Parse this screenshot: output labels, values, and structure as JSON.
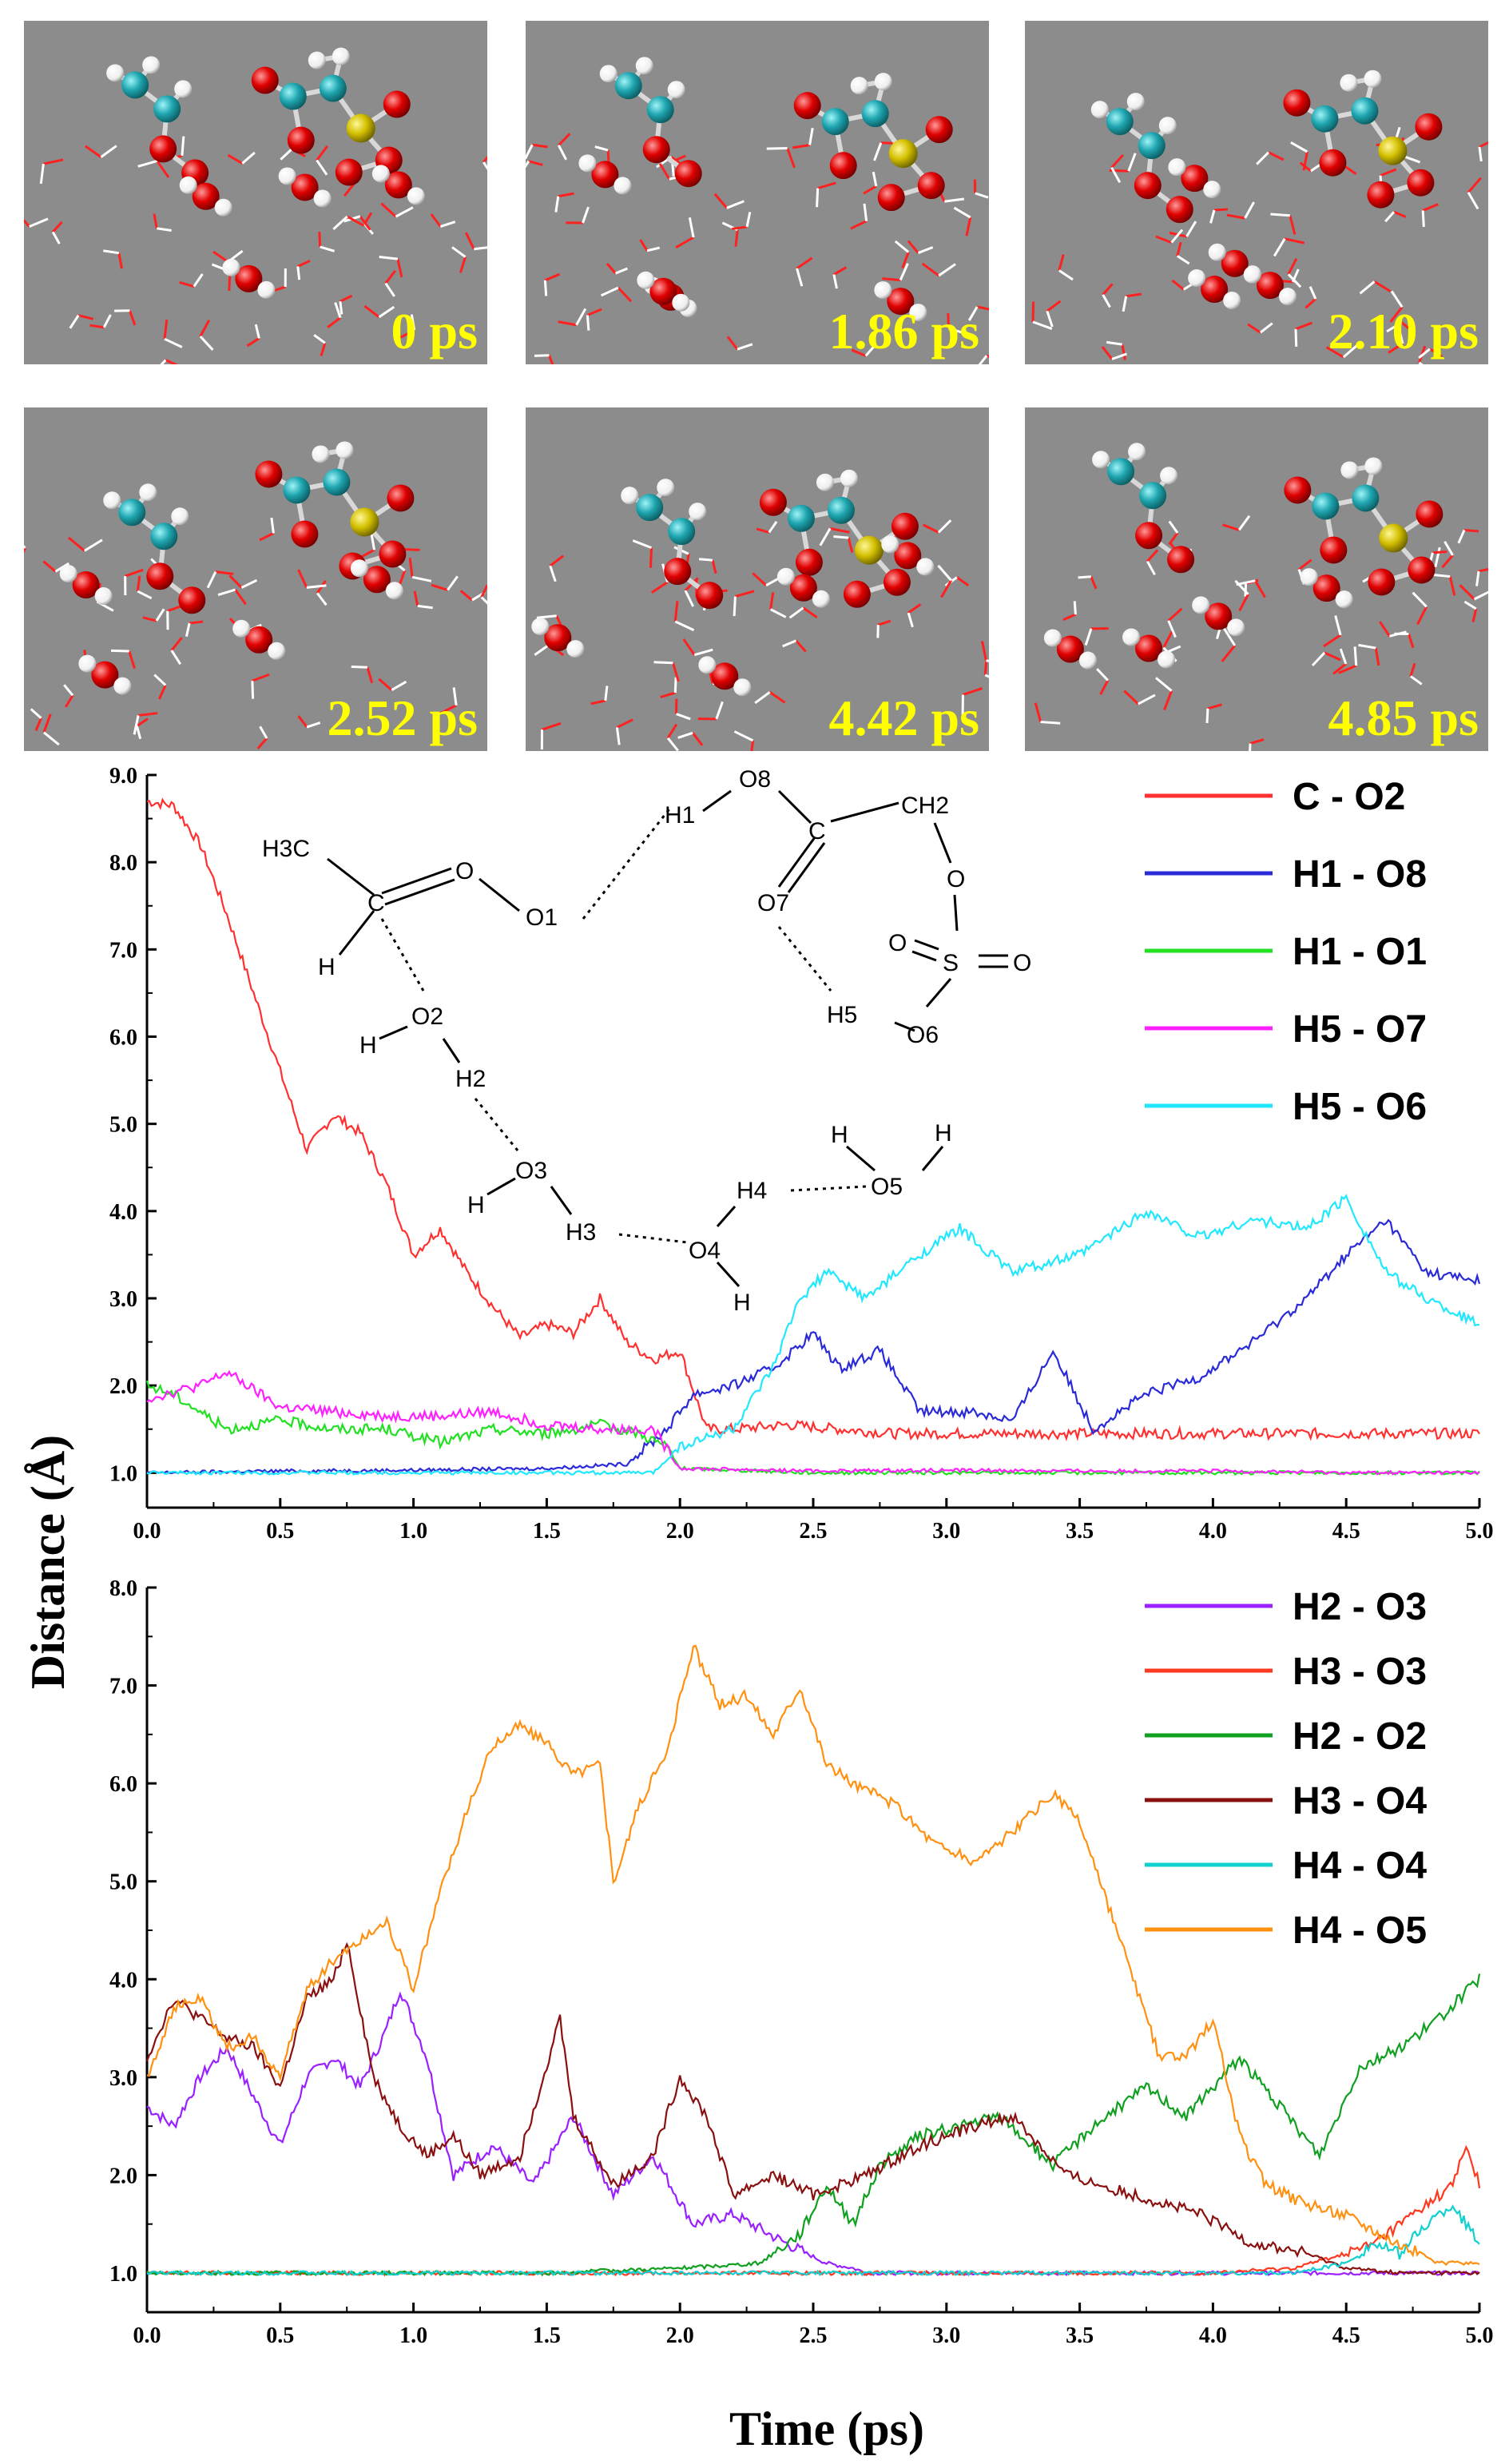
{
  "figure": {
    "snapshots": [
      {
        "time_label": "0 ps"
      },
      {
        "time_label": "1.86 ps"
      },
      {
        "time_label": "2.10 ps"
      },
      {
        "time_label": "2.52 ps"
      },
      {
        "time_label": "4.42 ps"
      },
      {
        "time_label": "4.85 ps"
      }
    ],
    "colors": {
      "carbon": "#1fa6b0",
      "oxygen": "#e00000",
      "hydrogen": "#ffffff",
      "sulfur": "#d4c000",
      "background": "#8c8c8c"
    }
  },
  "shared_axes": {
    "xlabel": "Time (ps)",
    "ylabel": "Distance (Å)"
  },
  "scheme_labels": {
    "H3C": "H3C",
    "C": "C",
    "H_left": "H",
    "O": "O",
    "O1": "O1",
    "H1": "H1",
    "O8": "O8",
    "C_right": "C",
    "CH2": "CH2",
    "O7": "O7",
    "O_ester": "O",
    "S": "S",
    "O_s1": "O",
    "O_s2": "O",
    "H5": "H5",
    "O6": "O6",
    "O2": "O2",
    "H_o2": "H",
    "H2": "H2",
    "O3": "O3",
    "H_o3": "H",
    "H3": "H3",
    "O4": "O4",
    "H_o4": "H",
    "H4": "H4",
    "O5": "O5",
    "H_o5a": "H",
    "H_o5b": "H"
  },
  "chart_data": [
    {
      "type": "line",
      "title": "",
      "xlabel": "Time (ps)",
      "ylabel": "Distance (Å)",
      "xlim": [
        0.0,
        5.0
      ],
      "ylim": [
        0.6,
        9.0
      ],
      "xticks": [
        "0.0",
        "0.5",
        "1.0",
        "1.5",
        "2.0",
        "2.5",
        "3.0",
        "3.5",
        "4.0",
        "4.5",
        "5.0"
      ],
      "yticks": [
        "1.0",
        "2.0",
        "3.0",
        "4.0",
        "5.0",
        "6.0",
        "7.0",
        "8.0",
        "9.0"
      ],
      "legend": "top-right",
      "series": [
        {
          "name": "C - O2",
          "color": "#ff3030",
          "x": [
            0.0,
            0.1,
            0.2,
            0.3,
            0.4,
            0.5,
            0.6,
            0.7,
            0.8,
            0.9,
            1.0,
            1.1,
            1.2,
            1.3,
            1.4,
            1.5,
            1.6,
            1.7,
            1.8,
            1.9,
            2.0,
            2.1,
            2.2,
            2.4,
            2.6,
            2.8,
            3.0,
            3.5,
            4.0,
            4.5,
            5.0
          ],
          "y": [
            8.7,
            8.65,
            8.2,
            7.4,
            6.5,
            5.6,
            4.7,
            5.1,
            4.9,
            4.3,
            3.5,
            3.8,
            3.3,
            2.9,
            2.55,
            2.7,
            2.6,
            3.0,
            2.5,
            2.3,
            2.4,
            1.5,
            1.5,
            1.55,
            1.5,
            1.45,
            1.45,
            1.45,
            1.45,
            1.45,
            1.45
          ]
        },
        {
          "name": "H1 - O8",
          "color": "#2a2ad8",
          "x": [
            0.0,
            0.5,
            1.0,
            1.5,
            1.8,
            1.95,
            2.05,
            2.2,
            2.35,
            2.5,
            2.6,
            2.75,
            2.9,
            3.1,
            3.25,
            3.4,
            3.55,
            3.75,
            3.95,
            4.15,
            4.35,
            4.5,
            4.65,
            4.8,
            5.0
          ],
          "y": [
            1.0,
            1.02,
            1.03,
            1.05,
            1.1,
            1.5,
            1.9,
            2.0,
            2.2,
            2.6,
            2.2,
            2.4,
            1.7,
            1.7,
            1.6,
            2.4,
            1.5,
            1.9,
            2.1,
            2.5,
            3.0,
            3.5,
            3.9,
            3.3,
            3.2
          ]
        },
        {
          "name": "H1 - O1",
          "color": "#22e022",
          "x": [
            0.0,
            0.1,
            0.2,
            0.3,
            0.5,
            0.7,
            0.9,
            1.1,
            1.3,
            1.5,
            1.7,
            1.85,
            1.95,
            2.0,
            2.5,
            3.0,
            3.5,
            4.0,
            4.5,
            5.0
          ],
          "y": [
            2.0,
            1.9,
            1.7,
            1.5,
            1.6,
            1.5,
            1.5,
            1.35,
            1.5,
            1.45,
            1.55,
            1.45,
            1.3,
            1.05,
            1.0,
            1.0,
            1.0,
            1.0,
            1.0,
            1.0
          ]
        },
        {
          "name": "H5 - O7",
          "color": "#ff20ff",
          "x": [
            0.0,
            0.2,
            0.3,
            0.5,
            0.7,
            0.9,
            1.1,
            1.3,
            1.5,
            1.7,
            1.9,
            2.0,
            2.5,
            3.0,
            3.5,
            4.0,
            4.5,
            5.0
          ],
          "y": [
            1.85,
            2.0,
            2.15,
            1.75,
            1.7,
            1.65,
            1.65,
            1.7,
            1.55,
            1.5,
            1.5,
            1.05,
            1.02,
            1.03,
            1.02,
            1.02,
            1.0,
            1.0
          ]
        },
        {
          "name": "H5 - O6",
          "color": "#20e8ff",
          "x": [
            0.0,
            0.5,
            1.0,
            1.5,
            1.9,
            2.0,
            2.1,
            2.2,
            2.35,
            2.45,
            2.55,
            2.7,
            2.9,
            3.05,
            3.25,
            3.5,
            3.75,
            3.95,
            4.15,
            4.35,
            4.5,
            4.65,
            4.8,
            5.0
          ],
          "y": [
            1.0,
            1.0,
            1.0,
            1.0,
            1.0,
            1.3,
            1.4,
            1.5,
            2.2,
            3.0,
            3.3,
            3.0,
            3.5,
            3.8,
            3.3,
            3.5,
            4.0,
            3.7,
            3.9,
            3.8,
            4.15,
            3.3,
            3.0,
            2.7
          ]
        }
      ]
    },
    {
      "type": "line",
      "title": "",
      "xlabel": "Time (ps)",
      "ylabel": "Distance (Å)",
      "xlim": [
        0.0,
        5.0
      ],
      "ylim": [
        0.6,
        8.0
      ],
      "xticks": [
        "0.0",
        "0.5",
        "1.0",
        "1.5",
        "2.0",
        "2.5",
        "3.0",
        "3.5",
        "4.0",
        "4.5",
        "5.0"
      ],
      "yticks": [
        "1.0",
        "2.0",
        "3.0",
        "4.0",
        "5.0",
        "6.0",
        "7.0",
        "8.0"
      ],
      "legend": "top-right",
      "series": [
        {
          "name": "H2 - O3",
          "color": "#9a20ff",
          "x": [
            0.0,
            0.1,
            0.2,
            0.3,
            0.4,
            0.5,
            0.6,
            0.7,
            0.8,
            0.9,
            0.95,
            1.05,
            1.15,
            1.3,
            1.45,
            1.6,
            1.75,
            1.9,
            2.05,
            2.2,
            2.4,
            2.55,
            2.65,
            2.7,
            3.0,
            3.5,
            4.0,
            4.5,
            5.0
          ],
          "y": [
            2.7,
            2.5,
            3.0,
            3.3,
            2.8,
            2.3,
            3.0,
            3.2,
            2.9,
            3.5,
            3.9,
            3.2,
            2.0,
            2.3,
            1.9,
            2.6,
            1.8,
            2.2,
            1.5,
            1.6,
            1.3,
            1.1,
            1.05,
            1.0,
            1.0,
            1.0,
            1.0,
            1.0,
            1.0
          ]
        },
        {
          "name": "H3 - O3",
          "color": "#ff3820",
          "x": [
            0.0,
            0.5,
            1.0,
            1.5,
            2.0,
            2.5,
            3.0,
            3.5,
            4.0,
            4.3,
            4.5,
            4.6,
            4.7,
            4.8,
            4.9,
            4.95,
            5.0
          ],
          "y": [
            1.0,
            1.0,
            1.0,
            1.0,
            1.0,
            1.0,
            1.0,
            1.0,
            1.0,
            1.05,
            1.2,
            1.3,
            1.5,
            1.7,
            1.9,
            2.3,
            1.9
          ]
        },
        {
          "name": "H2 - O2",
          "color": "#10a020",
          "x": [
            0.0,
            0.5,
            1.0,
            1.5,
            2.0,
            2.3,
            2.45,
            2.55,
            2.65,
            2.75,
            2.9,
            3.05,
            3.2,
            3.4,
            3.55,
            3.75,
            3.9,
            4.1,
            4.25,
            4.4,
            4.55,
            4.7,
            4.85,
            5.0
          ],
          "y": [
            1.0,
            1.0,
            1.0,
            1.0,
            1.05,
            1.1,
            1.4,
            1.9,
            1.5,
            2.1,
            2.4,
            2.5,
            2.6,
            2.1,
            2.5,
            2.9,
            2.6,
            3.2,
            2.7,
            2.2,
            3.1,
            3.3,
            3.6,
            4.0
          ]
        },
        {
          "name": "H3 - O4",
          "color": "#8a1010",
          "x": [
            0.0,
            0.1,
            0.2,
            0.3,
            0.4,
            0.5,
            0.6,
            0.7,
            0.75,
            0.85,
            0.95,
            1.05,
            1.15,
            1.25,
            1.4,
            1.55,
            1.6,
            1.75,
            1.9,
            2.0,
            2.1,
            2.2,
            2.35,
            2.5,
            2.7,
            2.9,
            3.1,
            3.25,
            3.45,
            3.7,
            3.95,
            4.15,
            4.35,
            4.5,
            4.7,
            5.0
          ],
          "y": [
            3.2,
            3.8,
            3.6,
            3.4,
            3.3,
            2.9,
            3.8,
            4.0,
            4.4,
            3.0,
            2.5,
            2.2,
            2.4,
            2.0,
            2.2,
            3.6,
            2.6,
            1.9,
            2.2,
            3.0,
            2.6,
            1.8,
            2.0,
            1.8,
            2.0,
            2.3,
            2.5,
            2.6,
            2.0,
            1.8,
            1.6,
            1.3,
            1.2,
            1.05,
            1.0,
            1.0
          ]
        },
        {
          "name": "H4 - O4",
          "color": "#10d0d0",
          "x": [
            0.0,
            0.5,
            1.0,
            1.5,
            2.0,
            2.5,
            3.0,
            3.5,
            4.0,
            4.3,
            4.5,
            4.6,
            4.7,
            4.8,
            4.9,
            5.0
          ],
          "y": [
            1.0,
            1.0,
            1.0,
            1.0,
            1.0,
            1.0,
            1.0,
            1.0,
            1.0,
            1.0,
            1.1,
            1.3,
            1.2,
            1.5,
            1.7,
            1.3
          ]
        },
        {
          "name": "H4 - O5",
          "color": "#ff9010",
          "x": [
            0.0,
            0.1,
            0.2,
            0.3,
            0.4,
            0.5,
            0.6,
            0.7,
            0.8,
            0.9,
            1.0,
            1.1,
            1.2,
            1.3,
            1.4,
            1.5,
            1.6,
            1.7,
            1.75,
            1.85,
            1.95,
            2.05,
            2.15,
            2.25,
            2.35,
            2.45,
            2.55,
            2.65,
            2.8,
            2.95,
            3.1,
            3.25,
            3.4,
            3.5,
            3.6,
            3.7,
            3.8,
            3.9,
            4.0,
            4.1,
            4.2,
            4.35,
            4.5,
            4.7,
            4.85,
            5.0
          ],
          "y": [
            3.0,
            3.7,
            3.8,
            3.3,
            3.4,
            3.0,
            3.9,
            4.2,
            4.4,
            4.6,
            3.9,
            4.9,
            5.7,
            6.4,
            6.6,
            6.4,
            6.1,
            6.2,
            5.0,
            5.8,
            6.3,
            7.4,
            6.8,
            6.9,
            6.5,
            7.0,
            6.2,
            6.0,
            5.8,
            5.4,
            5.2,
            5.5,
            5.9,
            5.6,
            4.8,
            4.0,
            3.2,
            3.2,
            3.6,
            2.4,
            1.9,
            1.7,
            1.6,
            1.3,
            1.1,
            1.1
          ]
        }
      ]
    }
  ]
}
